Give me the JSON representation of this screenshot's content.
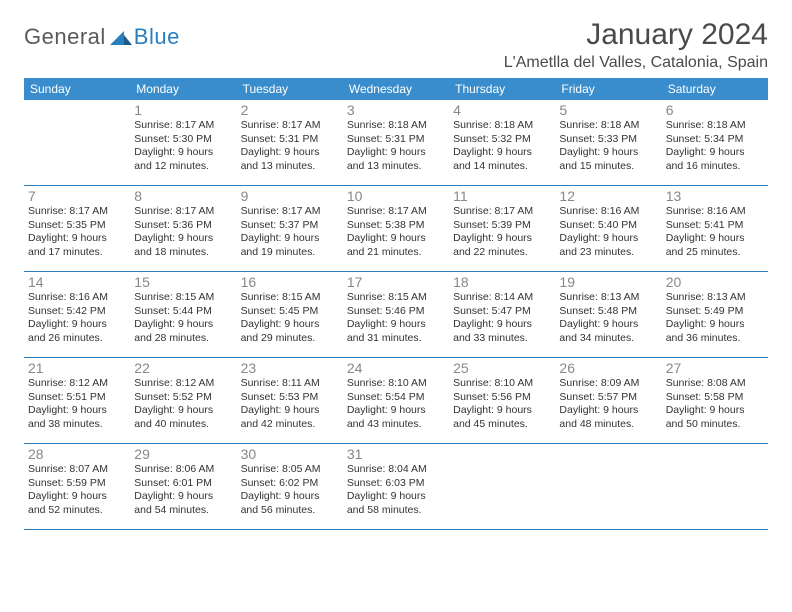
{
  "logo": {
    "text_general": "General",
    "text_blue": "Blue",
    "mark_color": "#2b7fbf"
  },
  "title": "January 2024",
  "location": "L'Ametlla del Valles, Catalonia, Spain",
  "colors": {
    "header_bg": "#3a8dcc",
    "header_text": "#ffffff",
    "border": "#2b7fbf",
    "daynum": "#888888",
    "body_text": "#333333",
    "page_bg": "#ffffff"
  },
  "weekdays": [
    "Sunday",
    "Monday",
    "Tuesday",
    "Wednesday",
    "Thursday",
    "Friday",
    "Saturday"
  ],
  "weeks": [
    [
      null,
      {
        "d": "1",
        "sr": "8:17 AM",
        "ss": "5:30 PM",
        "dl": "9 hours and 12 minutes."
      },
      {
        "d": "2",
        "sr": "8:17 AM",
        "ss": "5:31 PM",
        "dl": "9 hours and 13 minutes."
      },
      {
        "d": "3",
        "sr": "8:18 AM",
        "ss": "5:31 PM",
        "dl": "9 hours and 13 minutes."
      },
      {
        "d": "4",
        "sr": "8:18 AM",
        "ss": "5:32 PM",
        "dl": "9 hours and 14 minutes."
      },
      {
        "d": "5",
        "sr": "8:18 AM",
        "ss": "5:33 PM",
        "dl": "9 hours and 15 minutes."
      },
      {
        "d": "6",
        "sr": "8:18 AM",
        "ss": "5:34 PM",
        "dl": "9 hours and 16 minutes."
      }
    ],
    [
      {
        "d": "7",
        "sr": "8:17 AM",
        "ss": "5:35 PM",
        "dl": "9 hours and 17 minutes."
      },
      {
        "d": "8",
        "sr": "8:17 AM",
        "ss": "5:36 PM",
        "dl": "9 hours and 18 minutes."
      },
      {
        "d": "9",
        "sr": "8:17 AM",
        "ss": "5:37 PM",
        "dl": "9 hours and 19 minutes."
      },
      {
        "d": "10",
        "sr": "8:17 AM",
        "ss": "5:38 PM",
        "dl": "9 hours and 21 minutes."
      },
      {
        "d": "11",
        "sr": "8:17 AM",
        "ss": "5:39 PM",
        "dl": "9 hours and 22 minutes."
      },
      {
        "d": "12",
        "sr": "8:16 AM",
        "ss": "5:40 PM",
        "dl": "9 hours and 23 minutes."
      },
      {
        "d": "13",
        "sr": "8:16 AM",
        "ss": "5:41 PM",
        "dl": "9 hours and 25 minutes."
      }
    ],
    [
      {
        "d": "14",
        "sr": "8:16 AM",
        "ss": "5:42 PM",
        "dl": "9 hours and 26 minutes."
      },
      {
        "d": "15",
        "sr": "8:15 AM",
        "ss": "5:44 PM",
        "dl": "9 hours and 28 minutes."
      },
      {
        "d": "16",
        "sr": "8:15 AM",
        "ss": "5:45 PM",
        "dl": "9 hours and 29 minutes."
      },
      {
        "d": "17",
        "sr": "8:15 AM",
        "ss": "5:46 PM",
        "dl": "9 hours and 31 minutes."
      },
      {
        "d": "18",
        "sr": "8:14 AM",
        "ss": "5:47 PM",
        "dl": "9 hours and 33 minutes."
      },
      {
        "d": "19",
        "sr": "8:13 AM",
        "ss": "5:48 PM",
        "dl": "9 hours and 34 minutes."
      },
      {
        "d": "20",
        "sr": "8:13 AM",
        "ss": "5:49 PM",
        "dl": "9 hours and 36 minutes."
      }
    ],
    [
      {
        "d": "21",
        "sr": "8:12 AM",
        "ss": "5:51 PM",
        "dl": "9 hours and 38 minutes."
      },
      {
        "d": "22",
        "sr": "8:12 AM",
        "ss": "5:52 PM",
        "dl": "9 hours and 40 minutes."
      },
      {
        "d": "23",
        "sr": "8:11 AM",
        "ss": "5:53 PM",
        "dl": "9 hours and 42 minutes."
      },
      {
        "d": "24",
        "sr": "8:10 AM",
        "ss": "5:54 PM",
        "dl": "9 hours and 43 minutes."
      },
      {
        "d": "25",
        "sr": "8:10 AM",
        "ss": "5:56 PM",
        "dl": "9 hours and 45 minutes."
      },
      {
        "d": "26",
        "sr": "8:09 AM",
        "ss": "5:57 PM",
        "dl": "9 hours and 48 minutes."
      },
      {
        "d": "27",
        "sr": "8:08 AM",
        "ss": "5:58 PM",
        "dl": "9 hours and 50 minutes."
      }
    ],
    [
      {
        "d": "28",
        "sr": "8:07 AM",
        "ss": "5:59 PM",
        "dl": "9 hours and 52 minutes."
      },
      {
        "d": "29",
        "sr": "8:06 AM",
        "ss": "6:01 PM",
        "dl": "9 hours and 54 minutes."
      },
      {
        "d": "30",
        "sr": "8:05 AM",
        "ss": "6:02 PM",
        "dl": "9 hours and 56 minutes."
      },
      {
        "d": "31",
        "sr": "8:04 AM",
        "ss": "6:03 PM",
        "dl": "9 hours and 58 minutes."
      },
      null,
      null,
      null
    ]
  ],
  "labels": {
    "sunrise_prefix": "Sunrise: ",
    "sunset_prefix": "Sunset: ",
    "daylight_prefix": "Daylight: "
  }
}
